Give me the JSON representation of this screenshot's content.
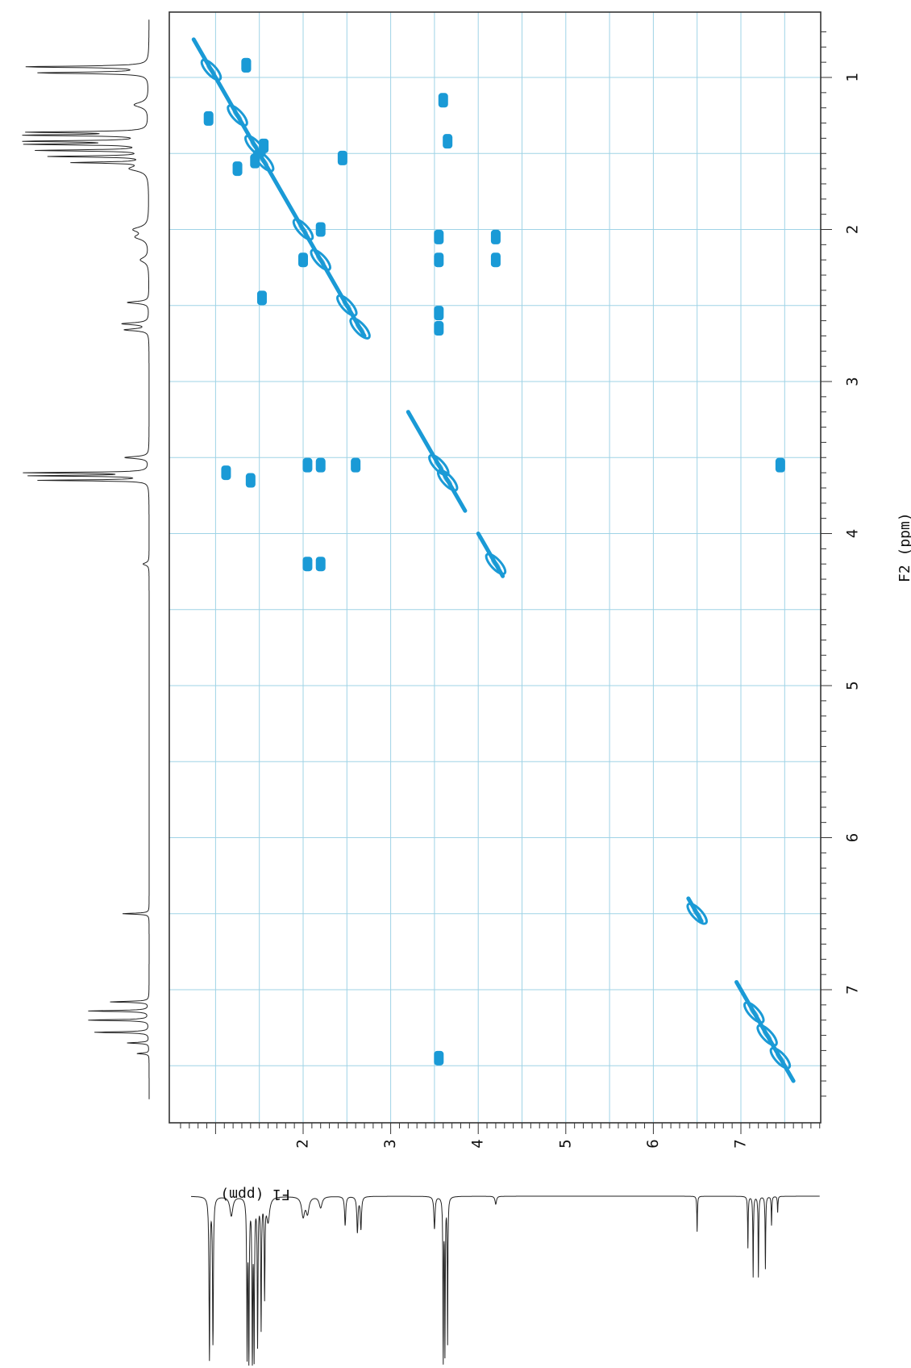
{
  "chart_data": {
    "type": "scatter",
    "subtype": "2D NMR COSY contour plot (rotated 90°)",
    "f2_axis": {
      "label": "F2 (ppm)",
      "range": [
        0.7,
        7.7
      ],
      "major_ticks": [
        "1",
        "2",
        "3",
        "4",
        "5",
        "6",
        "7"
      ],
      "grid": true
    },
    "f1_axis": {
      "label": "F1 (ppm)",
      "range": [
        0.55,
        7.9
      ],
      "major_ticks": [
        "2",
        "3",
        "4",
        "5",
        "6",
        "7"
      ],
      "grid": true
    },
    "colors": {
      "contour": "#1a9ad6",
      "grid": "#9fd3e6",
      "frame": "#333333",
      "trace": "#222222"
    },
    "diagonal_segments": [
      {
        "from": [
          0.75,
          0.75
        ],
        "to": [
          2.7,
          2.7
        ]
      },
      {
        "from": [
          3.2,
          3.2
        ],
        "to": [
          3.85,
          3.85
        ]
      },
      {
        "from": [
          4.0,
          4.0
        ],
        "to": [
          4.28,
          4.28
        ]
      },
      {
        "from": [
          6.4,
          6.4
        ],
        "to": [
          6.55,
          6.55
        ]
      },
      {
        "from": [
          6.95,
          6.95
        ],
        "to": [
          7.6,
          7.6
        ]
      }
    ],
    "diagonal_peaks": [
      {
        "f2": 0.95,
        "f1": 0.95
      },
      {
        "f2": 1.25,
        "f1": 1.25
      },
      {
        "f2": 1.45,
        "f1": 1.45
      },
      {
        "f2": 1.55,
        "f1": 1.55
      },
      {
        "f2": 2.0,
        "f1": 2.0
      },
      {
        "f2": 2.2,
        "f1": 2.2
      },
      {
        "f2": 2.5,
        "f1": 2.5
      },
      {
        "f2": 2.65,
        "f1": 2.65
      },
      {
        "f2": 3.55,
        "f1": 3.55
      },
      {
        "f2": 3.65,
        "f1": 3.65
      },
      {
        "f2": 4.2,
        "f1": 4.2
      },
      {
        "f2": 6.5,
        "f1": 6.5
      },
      {
        "f2": 7.15,
        "f1": 7.15
      },
      {
        "f2": 7.3,
        "f1": 7.3
      },
      {
        "f2": 7.45,
        "f1": 7.45
      }
    ],
    "cross_peaks": [
      {
        "f2": 0.92,
        "f1": 1.35
      },
      {
        "f2": 0.92,
        "f1": 1.35
      },
      {
        "f2": 1.27,
        "f1": 0.92
      },
      {
        "f2": 1.45,
        "f1": 1.55
      },
      {
        "f2": 1.55,
        "f1": 1.45
      },
      {
        "f2": 1.6,
        "f1": 1.25
      },
      {
        "f2": 1.53,
        "f1": 2.45
      },
      {
        "f2": 2.45,
        "f1": 1.53
      },
      {
        "f2": 2.0,
        "f1": 2.2
      },
      {
        "f2": 2.2,
        "f1": 2.0
      },
      {
        "f2": 2.05,
        "f1": 4.2
      },
      {
        "f2": 2.2,
        "f1": 4.2
      },
      {
        "f2": 4.2,
        "f1": 2.05
      },
      {
        "f2": 4.2,
        "f1": 2.2
      },
      {
        "f2": 2.05,
        "f1": 3.55
      },
      {
        "f2": 2.2,
        "f1": 3.55
      },
      {
        "f2": 3.55,
        "f1": 2.05
      },
      {
        "f2": 3.55,
        "f1": 2.2
      },
      {
        "f2": 2.65,
        "f1": 3.55
      },
      {
        "f2": 2.55,
        "f1": 3.55
      },
      {
        "f2": 3.55,
        "f1": 2.6
      },
      {
        "f2": 3.6,
        "f1": 1.12
      },
      {
        "f2": 3.65,
        "f1": 1.4
      },
      {
        "f2": 1.15,
        "f1": 3.6
      },
      {
        "f2": 1.42,
        "f1": 3.65
      },
      {
        "f2": 3.55,
        "f1": 7.45
      },
      {
        "f2": 7.45,
        "f1": 3.55
      }
    ]
  }
}
